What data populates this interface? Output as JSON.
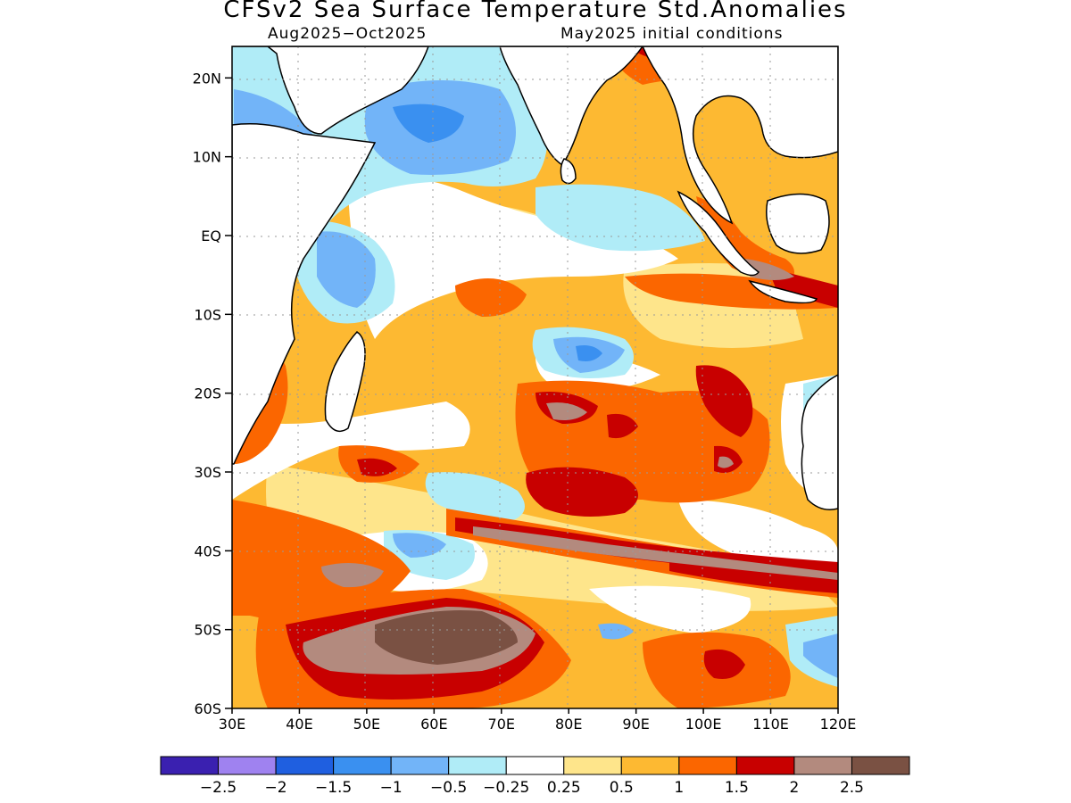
{
  "header": {
    "title": "CFSv2 Sea Surface Temperature Std.Anomalies",
    "period": "Aug2025−Oct2025",
    "init": "May2025 initial conditions"
  },
  "axes": {
    "lat_labels": [
      "20N",
      "10N",
      "EQ",
      "10S",
      "20S",
      "30S",
      "40S",
      "50S",
      "60S"
    ],
    "lat_values": [
      20,
      10,
      0,
      -10,
      -20,
      -30,
      -40,
      -50,
      -60
    ],
    "lon_labels": [
      "30E",
      "40E",
      "50E",
      "60E",
      "70E",
      "80E",
      "90E",
      "100E",
      "110E",
      "120E"
    ],
    "lon_values": [
      30,
      40,
      50,
      60,
      70,
      80,
      90,
      100,
      110,
      120
    ],
    "lat_range": [
      -60,
      24
    ],
    "lon_range": [
      30,
      120
    ]
  },
  "colorbar": {
    "colors": [
      "#3a20b0",
      "#9f82f0",
      "#1f5fe0",
      "#3a90f0",
      "#72b4f8",
      "#b0ecf7",
      "#ffffff",
      "#fee58b",
      "#fdb932",
      "#fb6600",
      "#c80000",
      "#b38a7e",
      "#7a5143"
    ],
    "labels": [
      "−2.5",
      "−2",
      "−1.5",
      "−1",
      "−0.5",
      "−0.25",
      "0.25",
      "0.5",
      "1",
      "1.5",
      "2",
      "2.5"
    ]
  },
  "colors": {
    "base": "#fdb932",
    "land": "#ffffff"
  }
}
